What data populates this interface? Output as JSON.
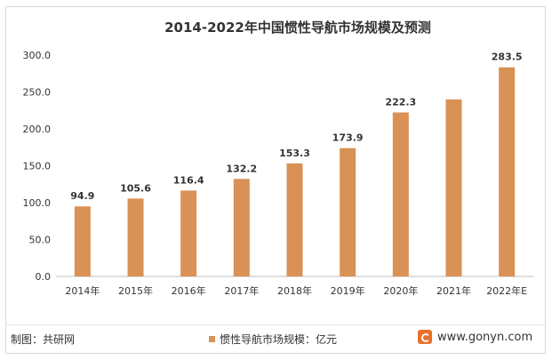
{
  "chart_data": {
    "type": "bar",
    "title": "2014-2022年中国惯性导航市场规模及预测",
    "categories": [
      "2014年",
      "2015年",
      "2016年",
      "2017年",
      "2018年",
      "2019年",
      "2020年",
      "2021年",
      "2022年E"
    ],
    "series": [
      {
        "name": "惯性导航市场规模：亿元",
        "values": [
          94.9,
          105.6,
          116.4,
          132.2,
          153.3,
          173.9,
          222.3,
          240.0,
          283.5
        ],
        "labels": [
          "94.9",
          "105.6",
          "116.4",
          "132.2",
          "153.3",
          "173.9",
          "222.3",
          "",
          "283.5"
        ]
      }
    ],
    "ylim": [
      0,
      300
    ],
    "yticks": [
      "0.0",
      "50.0",
      "100.0",
      "150.0",
      "200.0",
      "250.0",
      "300.0"
    ],
    "grid": false,
    "legend_position": "bottom"
  },
  "colors": {
    "bar": "#d99156",
    "axis": "#bfbfbf",
    "text": "#333333",
    "logo": "#e8702a"
  },
  "footer": {
    "source": "制图：共研网",
    "website": "www.gonyn.com",
    "logo_icon": "gonyn-logo-icon"
  }
}
